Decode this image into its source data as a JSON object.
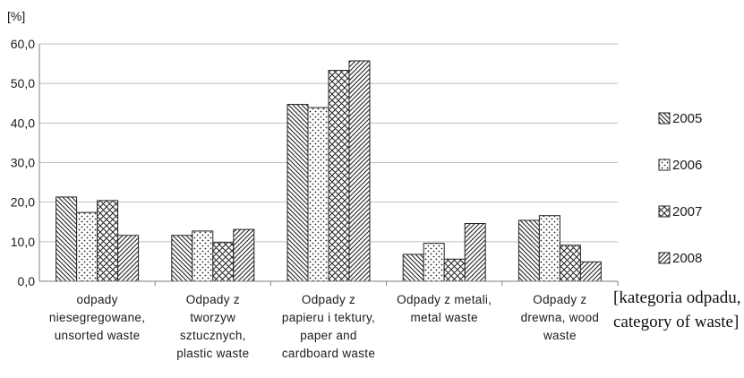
{
  "chart_data": {
    "type": "bar",
    "ylabel": "[%]",
    "xlabel_lines": [
      "[kategoria odpadu,",
      "category of waste]"
    ],
    "ylim": [
      0,
      60
    ],
    "yticks": [
      "0,0",
      "10,0",
      "20,0",
      "30,0",
      "40,0",
      "50,0",
      "60,0"
    ],
    "grid": true,
    "legend_position": "right",
    "categories": [
      [
        "odpady",
        "niesegregowane,",
        "unsorted waste"
      ],
      [
        "Odpady z",
        "tworzyw",
        "sztucznych,",
        "plastic waste"
      ],
      [
        "Odpady z",
        "papieru i tektury,",
        "paper and",
        "cardboard waste"
      ],
      [
        "Odpady z metali,",
        "metal waste"
      ],
      [
        "Odpady z",
        "drewna, wood",
        "waste"
      ]
    ],
    "series": [
      {
        "name": "2005",
        "pattern": "diag-back",
        "values": [
          21.3,
          11.6,
          44.7,
          6.8,
          15.4
        ]
      },
      {
        "name": "2006",
        "pattern": "dots",
        "values": [
          17.4,
          12.7,
          43.9,
          9.6,
          16.6
        ]
      },
      {
        "name": "2007",
        "pattern": "crosshatch",
        "values": [
          20.4,
          9.8,
          53.3,
          5.6,
          9.1
        ]
      },
      {
        "name": "2008",
        "pattern": "diag-forward",
        "values": [
          11.6,
          13.1,
          55.7,
          14.6,
          4.9
        ]
      }
    ],
    "colors": {
      "bar_stroke": "#222222",
      "grid": "#bfbfbf",
      "axis": "#7f7f7f"
    }
  }
}
